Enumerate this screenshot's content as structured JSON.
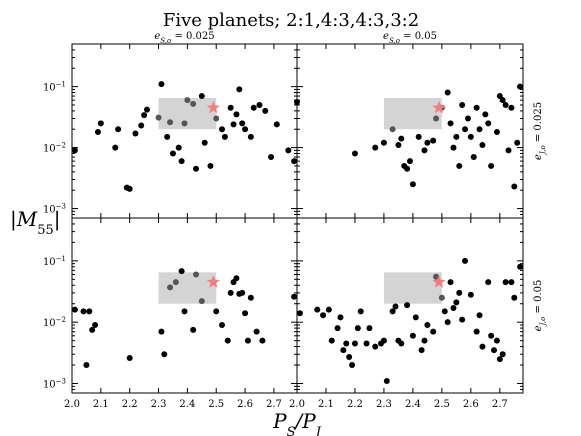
{
  "title": "Five planets; 2:1,4:3,4:3,3:2",
  "xlabel": "P_S/P_J",
  "ylabel": "|M_55|",
  "chart_data": {
    "type": "scatter",
    "xlim": [
      2.0,
      2.78
    ],
    "ylim": [
      0.0007,
      0.5
    ],
    "yscale": "log",
    "xticks": [
      "2.0",
      "2.1",
      "2.2",
      "2.3",
      "2.4",
      "2.5",
      "2.6",
      "2.7"
    ],
    "yticks": [
      {
        "value": 0.001,
        "base": "10",
        "exp": "−3"
      },
      {
        "value": 0.01,
        "base": "10",
        "exp": "−2"
      },
      {
        "value": 0.1,
        "base": "10",
        "exp": "−1"
      }
    ],
    "column_labels": [
      {
        "var": "e",
        "sub": "S,o",
        "text": " = 0.025"
      },
      {
        "var": "e",
        "sub": "S,o",
        "text": " = 0.05"
      }
    ],
    "row_labels": [
      {
        "var": "e",
        "sub": "J,o",
        "text": " = 0.025"
      },
      {
        "var": "e",
        "sub": "J,o",
        "text": " = 0.05"
      }
    ],
    "highlight_box": {
      "x": [
        2.3,
        2.5
      ],
      "y": [
        0.02,
        0.065
      ],
      "color": "#bdbdbd"
    },
    "marker": {
      "type": "star",
      "x": 2.49,
      "y": 0.045,
      "color": "#f08080"
    },
    "panels": [
      {
        "name": "top-left",
        "x": [
          2.01,
          2.09,
          2.1,
          2.15,
          2.16,
          2.19,
          2.2,
          2.22,
          2.24,
          2.25,
          2.26,
          2.3,
          2.31,
          2.33,
          2.34,
          2.35,
          2.37,
          2.38,
          2.39,
          2.4,
          2.42,
          2.43,
          2.45,
          2.46,
          2.48,
          2.5,
          2.52,
          2.53,
          2.55,
          2.56,
          2.57,
          2.58,
          2.59,
          2.6,
          2.62,
          2.63,
          2.65,
          2.67,
          2.69,
          2.71,
          2.75,
          2.77,
          2.78
        ],
        "y": [
          0.009,
          0.018,
          0.025,
          0.01,
          0.02,
          0.0022,
          0.0021,
          0.017,
          0.023,
          0.034,
          0.042,
          0.031,
          0.11,
          0.015,
          0.026,
          0.008,
          0.01,
          0.006,
          0.025,
          0.06,
          0.052,
          0.0045,
          0.07,
          0.012,
          0.005,
          0.03,
          0.02,
          0.015,
          0.045,
          0.024,
          0.035,
          0.09,
          0.025,
          0.02,
          0.015,
          0.045,
          0.05,
          0.04,
          0.007,
          0.024,
          0.009,
          0.006,
          0.056
        ]
      },
      {
        "name": "top-right",
        "x": [
          2.2,
          2.27,
          2.3,
          2.33,
          2.35,
          2.36,
          2.37,
          2.38,
          2.39,
          2.4,
          2.42,
          2.44,
          2.45,
          2.47,
          2.48,
          2.5,
          2.52,
          2.53,
          2.54,
          2.55,
          2.56,
          2.57,
          2.58,
          2.59,
          2.6,
          2.61,
          2.62,
          2.63,
          2.64,
          2.65,
          2.66,
          2.67,
          2.69,
          2.7,
          2.71,
          2.72,
          2.73,
          2.74,
          2.75,
          2.76,
          2.77
        ],
        "y": [
          0.008,
          0.01,
          0.012,
          0.02,
          0.011,
          0.014,
          0.005,
          0.0045,
          0.006,
          0.0025,
          0.015,
          0.009,
          0.012,
          0.013,
          0.03,
          0.045,
          0.08,
          0.025,
          0.01,
          0.015,
          0.005,
          0.05,
          0.02,
          0.03,
          0.015,
          0.007,
          0.045,
          0.02,
          0.011,
          0.035,
          0.025,
          0.005,
          0.018,
          0.07,
          0.06,
          0.05,
          0.009,
          0.045,
          0.0023,
          0.012,
          0.1
        ]
      },
      {
        "name": "bottom-left",
        "x": [
          2.01,
          2.04,
          2.05,
          2.06,
          2.07,
          2.08,
          2.2,
          2.31,
          2.32,
          2.34,
          2.36,
          2.38,
          2.39,
          2.42,
          2.43,
          2.45,
          2.5,
          2.52,
          2.54,
          2.55,
          2.56,
          2.57,
          2.58,
          2.59,
          2.6,
          2.61,
          2.62,
          2.64,
          2.66,
          2.77
        ],
        "y": [
          0.016,
          0.015,
          0.002,
          0.015,
          0.0075,
          0.009,
          0.0026,
          0.007,
          0.003,
          0.037,
          0.045,
          0.068,
          0.015,
          0.0075,
          0.06,
          0.022,
          0.015,
          0.009,
          0.005,
          0.03,
          0.045,
          0.052,
          0.029,
          0.03,
          0.014,
          0.005,
          0.025,
          0.007,
          0.005,
          0.026
        ]
      },
      {
        "name": "bottom-right",
        "x": [
          2.01,
          2.07,
          2.09,
          2.11,
          2.12,
          2.14,
          2.15,
          2.16,
          2.17,
          2.18,
          2.19,
          2.2,
          2.21,
          2.22,
          2.24,
          2.25,
          2.27,
          2.29,
          2.3,
          2.31,
          2.33,
          2.34,
          2.35,
          2.36,
          2.38,
          2.4,
          2.41,
          2.43,
          2.44,
          2.45,
          2.47,
          2.48,
          2.5,
          2.51,
          2.52,
          2.53,
          2.54,
          2.55,
          2.56,
          2.57,
          2.58,
          2.6,
          2.62,
          2.63,
          2.64,
          2.66,
          2.67,
          2.68,
          2.69,
          2.7,
          2.71,
          2.72,
          2.74,
          2.75,
          2.77
        ],
        "y": [
          0.014,
          0.016,
          0.013,
          0.016,
          0.005,
          0.008,
          0.012,
          0.0035,
          0.0045,
          0.0027,
          0.002,
          0.0045,
          0.008,
          0.015,
          0.0045,
          0.008,
          0.004,
          0.0045,
          0.005,
          0.0011,
          0.015,
          0.018,
          0.005,
          0.0045,
          0.019,
          0.006,
          0.012,
          0.0035,
          0.005,
          0.009,
          0.007,
          0.055,
          0.025,
          0.015,
          0.01,
          0.045,
          0.017,
          0.021,
          0.03,
          0.011,
          0.1,
          0.028,
          0.007,
          0.013,
          0.004,
          0.045,
          0.006,
          0.0035,
          0.005,
          0.0025,
          0.003,
          0.045,
          0.045,
          0.025,
          0.08
        ]
      }
    ]
  }
}
